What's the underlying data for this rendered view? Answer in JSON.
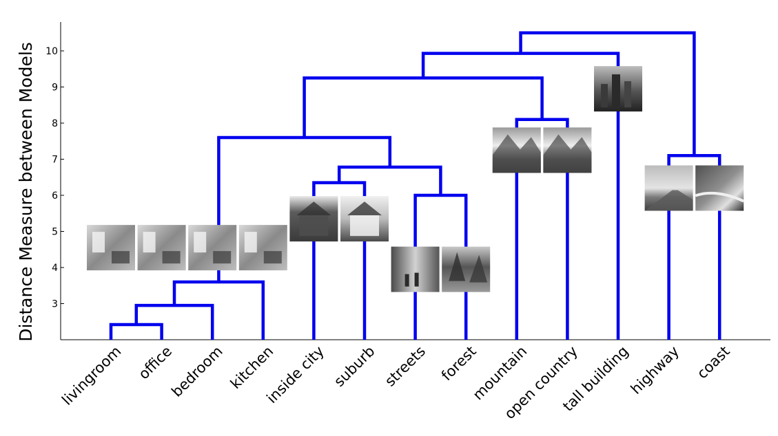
{
  "chart_data": {
    "type": "dendrogram",
    "ylabel": "Distance Measure between Models",
    "ylim": [
      2.0,
      10.8
    ],
    "yticks": [
      3,
      4,
      5,
      6,
      7,
      8,
      9,
      10
    ],
    "leaves": [
      "livingroom",
      "office",
      "bedroom",
      "kitchen",
      "inside city",
      "suburb",
      "streets",
      "forest",
      "mountain",
      "open country",
      "tall building",
      "highway",
      "coast"
    ],
    "line_color": "#0000ee",
    "merges": [
      {
        "left": "leaf:0",
        "right": "leaf:1",
        "height": 2.42
      },
      {
        "left": "merge:0",
        "right": "leaf:2",
        "height": 2.95
      },
      {
        "left": "merge:1",
        "right": "leaf:3",
        "height": 3.6
      },
      {
        "left": "leaf:4",
        "right": "leaf:5",
        "height": 6.35
      },
      {
        "left": "leaf:6",
        "right": "leaf:7",
        "height": 6.0
      },
      {
        "left": "merge:3",
        "right": "merge:4",
        "height": 6.78
      },
      {
        "left": "merge:2",
        "right": "merge:5",
        "height": 7.6
      },
      {
        "left": "leaf:8",
        "right": "leaf:9",
        "height": 8.1
      },
      {
        "left": "merge:6",
        "right": "merge:7",
        "height": 9.25
      },
      {
        "left": "merge:8",
        "right": "leaf:10",
        "height": 9.93
      },
      {
        "left": "leaf:11",
        "right": "leaf:12",
        "height": 7.1
      },
      {
        "left": "merge:9",
        "right": "merge:10",
        "height": 10.5
      }
    ],
    "thumbnails": [
      {
        "scene": "livingroom",
        "tone": "indoor",
        "near_height": 4.55
      },
      {
        "scene": "office",
        "tone": "indoor",
        "near_height": 4.55
      },
      {
        "scene": "bedroom",
        "tone": "indoor",
        "near_height": 4.55
      },
      {
        "scene": "kitchen",
        "tone": "indoor",
        "near_height": 4.55
      },
      {
        "scene": "inside city",
        "tone": "building",
        "near_height": 5.35
      },
      {
        "scene": "suburb",
        "tone": "house",
        "near_height": 5.35
      },
      {
        "scene": "streets",
        "tone": "street",
        "near_height": 3.95
      },
      {
        "scene": "forest",
        "tone": "forest",
        "near_height": 3.95
      },
      {
        "scene": "mountain",
        "tone": "mountain",
        "near_height": 7.25
      },
      {
        "scene": "open country",
        "tone": "mountain",
        "near_height": 7.25
      },
      {
        "scene": "tall building",
        "tone": "skyline",
        "near_height": 8.95
      },
      {
        "scene": "highway",
        "tone": "road",
        "near_height": 6.2
      },
      {
        "scene": "coast",
        "tone": "sea",
        "near_height": 6.2
      }
    ]
  }
}
